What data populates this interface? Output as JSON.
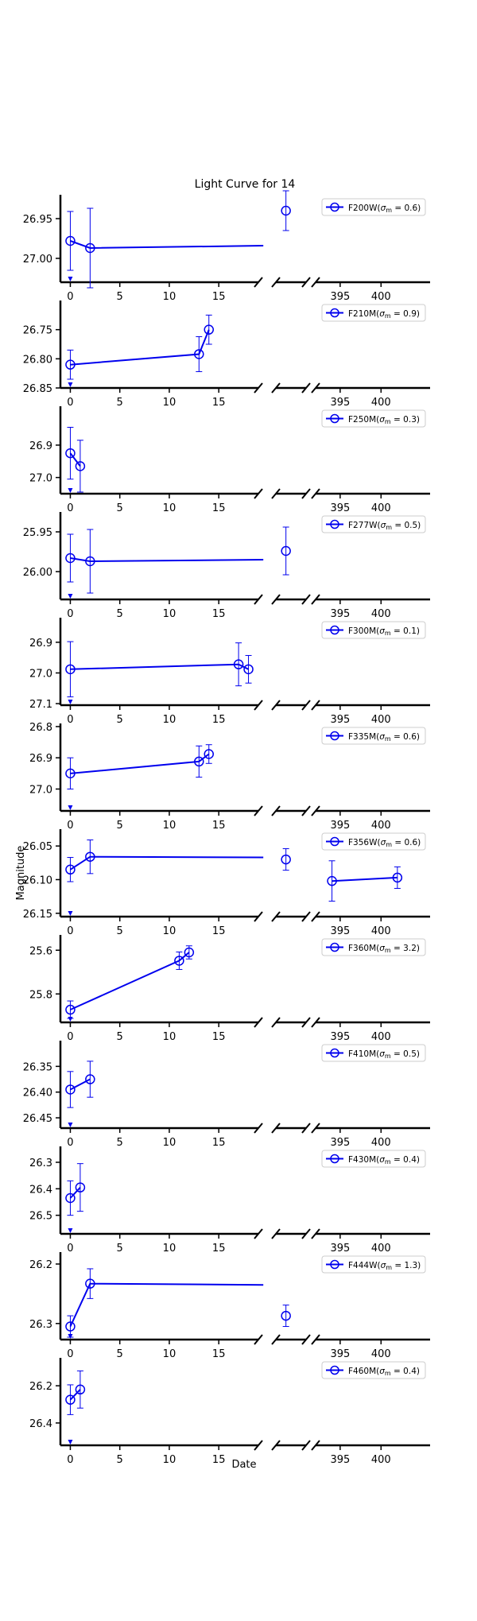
{
  "figure": {
    "title": "Light Curve for 14",
    "xlabel": "Date",
    "ylabel": "Magnitude"
  },
  "chart_data": [
    {
      "type": "scatter",
      "name": "F200W",
      "sigma": "0.6",
      "ylim": [
        27.03,
        26.92
      ],
      "yticks": [
        26.95,
        27.0
      ],
      "ytick_labels": [
        "26.95",
        "27.00"
      ],
      "points": [
        {
          "x": 0.0,
          "y": 26.978,
          "err": 0.037
        },
        {
          "x": 2.0,
          "y": 26.987,
          "err": 0.05
        },
        {
          "x": 19.5,
          "y": 26.984,
          "err": 0
        },
        {
          "x": 22.0,
          "y": 26.94,
          "err": 0.025
        }
      ],
      "lines": [
        [
          [
            0.0,
            26.978
          ],
          [
            2.0,
            26.987
          ],
          [
            19.5,
            26.984
          ]
        ]
      ],
      "markers": [
        [
          0.0,
          26.978,
          0.037
        ],
        [
          2.0,
          26.987,
          0.05
        ],
        [
          22.0,
          26.94,
          0.025
        ]
      ]
    },
    {
      "type": "scatter",
      "name": "F210M",
      "sigma": "0.9",
      "ylim": [
        26.85,
        26.7
      ],
      "yticks": [
        26.75,
        26.8,
        26.85
      ],
      "ytick_labels": [
        "26.75",
        "26.80",
        "26.85"
      ],
      "markers": [
        [
          0.0,
          26.81,
          0.025
        ],
        [
          13.0,
          26.792,
          0.03
        ],
        [
          14.0,
          26.75,
          0.025
        ]
      ],
      "lines": [
        [
          [
            0.0,
            26.81
          ],
          [
            13.0,
            26.792
          ],
          [
            14.0,
            26.75
          ]
        ]
      ]
    },
    {
      "type": "scatter",
      "name": "F250M",
      "sigma": "0.3",
      "ylim": [
        27.05,
        26.78
      ],
      "yticks": [
        26.9,
        27.0
      ],
      "ytick_labels": [
        "26.9",
        "27.0"
      ],
      "markers": [
        [
          0.0,
          26.925,
          0.08
        ],
        [
          1.0,
          26.965,
          0.08
        ]
      ],
      "lines": [
        [
          [
            0.0,
            26.925
          ],
          [
            1.0,
            26.965
          ]
        ]
      ]
    },
    {
      "type": "scatter",
      "name": "F277W",
      "sigma": "0.5",
      "ylim": [
        26.035,
        25.925
      ],
      "yticks": [
        25.95,
        26.0
      ],
      "ytick_labels": [
        "25.95",
        "26.00"
      ],
      "markers": [
        [
          0.0,
          25.983,
          0.03
        ],
        [
          2.0,
          25.987,
          0.04
        ],
        [
          22.0,
          25.974,
          0.03
        ]
      ],
      "lines": [
        [
          [
            0.0,
            25.983
          ],
          [
            2.0,
            25.987
          ],
          [
            19.5,
            25.985
          ]
        ]
      ]
    },
    {
      "type": "scatter",
      "name": "F300M",
      "sigma": "0.1",
      "ylim": [
        27.105,
        26.82
      ],
      "yticks": [
        26.9,
        27.0,
        27.1
      ],
      "ytick_labels": [
        "26.9",
        "27.0",
        "27.1"
      ],
      "markers": [
        [
          0.0,
          26.988,
          0.09
        ],
        [
          17.0,
          26.972,
          0.07
        ],
        [
          18.0,
          26.988,
          0.045
        ]
      ],
      "lines": [
        [
          [
            0.0,
            26.988
          ],
          [
            17.0,
            26.972
          ],
          [
            18.0,
            26.988
          ]
        ]
      ]
    },
    {
      "type": "scatter",
      "name": "F335M",
      "sigma": "0.6",
      "ylim": [
        27.07,
        26.79
      ],
      "yticks": [
        26.8,
        26.9,
        27.0
      ],
      "ytick_labels": [
        "26.8",
        "26.9",
        "27.0"
      ],
      "markers": [
        [
          0.0,
          26.95,
          0.05
        ],
        [
          13.0,
          26.912,
          0.05
        ],
        [
          14.0,
          26.888,
          0.03
        ]
      ],
      "lines": [
        [
          [
            0.0,
            26.95
          ],
          [
            13.0,
            26.912
          ],
          [
            14.0,
            26.888
          ]
        ]
      ]
    },
    {
      "type": "scatter",
      "name": "F356W",
      "sigma": "0.6",
      "ylim": [
        26.155,
        26.025
      ],
      "yticks": [
        26.05,
        26.1,
        26.15
      ],
      "ytick_labels": [
        "26.05",
        "26.10",
        "26.15"
      ],
      "markers": [
        [
          0.0,
          26.085,
          0.018
        ],
        [
          2.0,
          26.066,
          0.025
        ],
        [
          22.0,
          26.07,
          0.016
        ],
        [
          394.0,
          26.102,
          0.03
        ],
        [
          402.0,
          26.097,
          0.016
        ]
      ],
      "lines": [
        [
          [
            0.0,
            26.085
          ],
          [
            2.0,
            26.066
          ],
          [
            19.5,
            26.067
          ]
        ],
        [
          [
            394.0,
            26.102
          ],
          [
            402.0,
            26.097
          ]
        ]
      ]
    },
    {
      "type": "scatter",
      "name": "F360M",
      "sigma": "3.2",
      "ylim": [
        25.93,
        25.53
      ],
      "yticks": [
        25.6,
        25.8
      ],
      "ytick_labels": [
        "25.6",
        "25.8"
      ],
      "markers": [
        [
          0.0,
          25.872,
          0.04
        ],
        [
          11.0,
          25.648,
          0.04
        ],
        [
          12.0,
          25.61,
          0.03
        ]
      ],
      "lines": [
        [
          [
            0.0,
            25.872
          ],
          [
            11.0,
            25.648
          ],
          [
            12.0,
            25.61
          ]
        ]
      ]
    },
    {
      "type": "scatter",
      "name": "F410M",
      "sigma": "0.5",
      "ylim": [
        26.47,
        26.3
      ],
      "yticks": [
        26.35,
        26.4,
        26.45
      ],
      "ytick_labels": [
        "26.35",
        "26.40",
        "26.45"
      ],
      "markers": [
        [
          0.0,
          26.395,
          0.035
        ],
        [
          2.0,
          26.375,
          0.035
        ]
      ],
      "lines": [
        [
          [
            0.0,
            26.395
          ],
          [
            2.0,
            26.375
          ]
        ]
      ]
    },
    {
      "type": "scatter",
      "name": "F430M",
      "sigma": "0.4",
      "ylim": [
        26.57,
        26.24
      ],
      "yticks": [
        26.3,
        26.4,
        26.5
      ],
      "ytick_labels": [
        "26.3",
        "26.4",
        "26.5"
      ],
      "markers": [
        [
          0.0,
          26.435,
          0.065
        ],
        [
          1.0,
          26.395,
          0.09
        ]
      ],
      "lines": [
        [
          [
            0.0,
            26.435
          ],
          [
            1.0,
            26.395
          ]
        ]
      ]
    },
    {
      "type": "scatter",
      "name": "F444W",
      "sigma": "1.3",
      "ylim": [
        26.327,
        26.18
      ],
      "yticks": [
        26.2,
        26.3
      ],
      "ytick_labels": [
        "26.2",
        "26.3"
      ],
      "markers": [
        [
          0.0,
          26.305,
          0.018
        ],
        [
          2.0,
          26.233,
          0.025
        ],
        [
          22.0,
          26.287,
          0.018
        ]
      ],
      "lines": [
        [
          [
            0.0,
            26.305
          ],
          [
            2.0,
            26.233
          ],
          [
            19.5,
            26.235
          ]
        ]
      ]
    },
    {
      "type": "scatter",
      "name": "F460M",
      "sigma": "0.4",
      "ylim": [
        26.52,
        26.05
      ],
      "yticks": [
        26.2,
        26.4
      ],
      "ytick_labels": [
        "26.2",
        "26.4"
      ],
      "markers": [
        [
          0.0,
          26.275,
          0.08
        ],
        [
          1.0,
          26.22,
          0.1
        ]
      ],
      "lines": [
        [
          [
            0.0,
            26.275
          ],
          [
            1.0,
            26.22
          ]
        ]
      ]
    }
  ],
  "x_axis": {
    "segments": [
      {
        "xlim": [
          -1,
          19
        ],
        "ticks": [
          0,
          5,
          10,
          15
        ],
        "tick_labels": [
          "0",
          "5",
          "10",
          "15"
        ]
      },
      {
        "xlim": [
          21,
          24
        ],
        "ticks": [],
        "tick_labels": []
      },
      {
        "xlim": [
          392,
          406
        ],
        "ticks": [
          395,
          400
        ],
        "tick_labels": [
          "395",
          "400"
        ]
      }
    ]
  },
  "colors": {
    "series": "#0000ee",
    "axis": "#000000"
  }
}
